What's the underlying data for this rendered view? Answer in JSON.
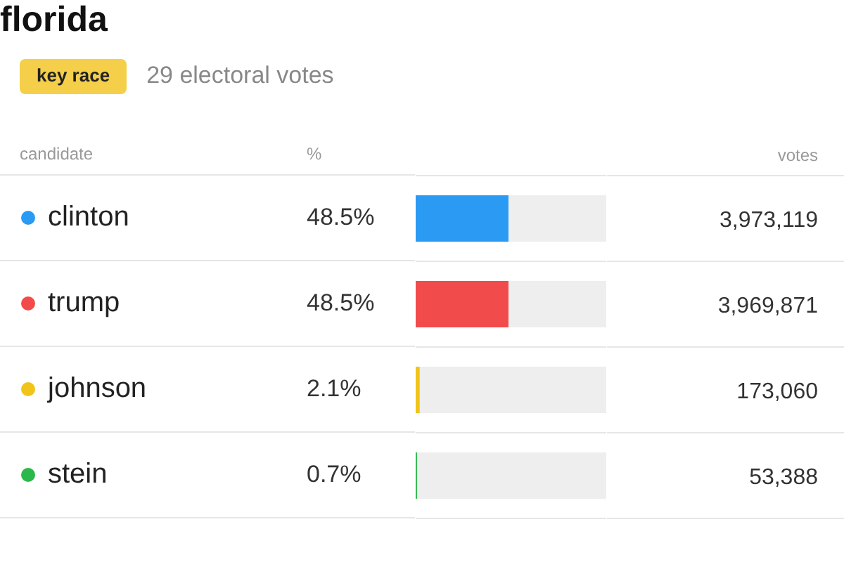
{
  "chart_data": {
    "type": "bar",
    "orientation": "horizontal",
    "title": "florida",
    "subtitle": "29 electoral votes",
    "categories": [
      "clinton",
      "trump",
      "johnson",
      "stein"
    ],
    "values": [
      48.5,
      48.5,
      2.1,
      0.7
    ],
    "colors": [
      "#2b9af3",
      "#f24b4b",
      "#f0c419",
      "#2bb84a"
    ],
    "value_labels": [
      "48.5%",
      "48.5%",
      "2.1%",
      "0.7%"
    ],
    "xlim": [
      0,
      100
    ],
    "tick_labels": false,
    "annotations": [
      "key race",
      "candidate",
      "%",
      "votes",
      "3,973,119",
      "3,969,871",
      "173,060",
      "53,388"
    ]
  }
}
